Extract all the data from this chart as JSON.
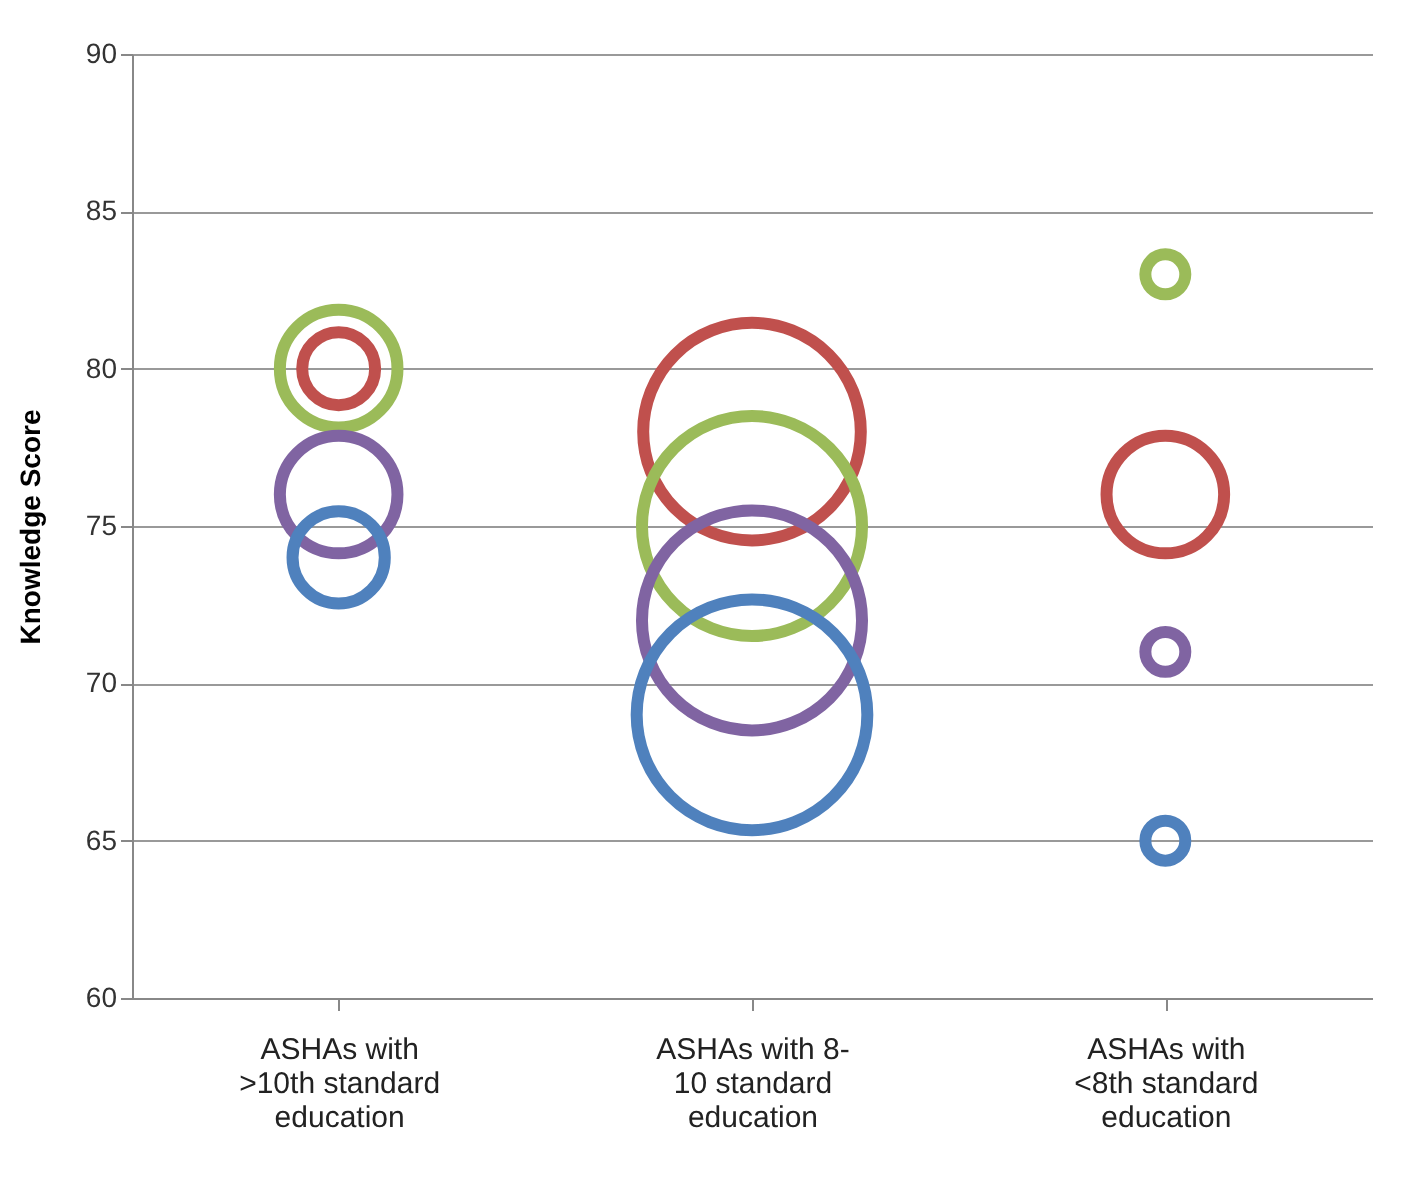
{
  "chart_data": {
    "type": "bubble",
    "ylabel": "Knowledge Score",
    "categories": [
      "ASHAs with >10th standard education",
      "ASHAs with 8-10 standard education",
      "ASHAs with <8th standard education"
    ],
    "series": [
      {
        "color": "#c0504d",
        "values": [
          80,
          78,
          76
        ],
        "sizes": [
          0.1,
          0.89,
          0.26
        ]
      },
      {
        "color": "#9bbb59",
        "values": [
          80,
          75,
          83
        ],
        "sizes": [
          0.26,
          0.91,
          0.03
        ]
      },
      {
        "color": "#8064a2",
        "values": [
          76,
          72,
          71
        ],
        "sizes": [
          0.26,
          0.91,
          0.03
        ]
      },
      {
        "color": "#4f81bd",
        "values": [
          74,
          69,
          65
        ],
        "sizes": [
          0.16,
          1,
          0.03
        ]
      }
    ],
    "ylim": [
      60,
      90
    ],
    "yticks": [
      60,
      65,
      70,
      75,
      80,
      85,
      90
    ],
    "grid": "y",
    "legend": false
  }
}
